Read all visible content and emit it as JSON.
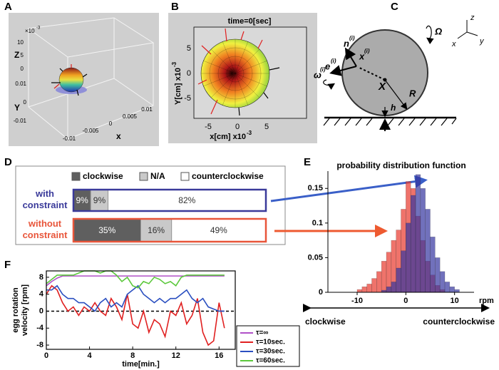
{
  "panel_labels": [
    "A",
    "B",
    "C",
    "D",
    "E",
    "F"
  ],
  "panel_a": {
    "scale": "×10",
    "scale_exp": "-3",
    "z_label": "Z",
    "y_label": "Y",
    "x_label": "x",
    "z_ticks": [
      "10",
      "5",
      "0"
    ],
    "y_ticks": [
      "0.01",
      "0",
      "-0.01"
    ],
    "x_ticks": [
      "-0.01",
      "-0.005",
      "0",
      "0.005",
      "0.01"
    ]
  },
  "panel_b": {
    "title": "time=0[sec]",
    "x_label": "x[cm] x10",
    "x_label_exp": "-3",
    "y_label": "Y[cm] x10",
    "y_label_exp": "-3",
    "x_ticks": [
      "-5",
      "0",
      "5"
    ],
    "y_ticks": [
      "5",
      "0",
      "-5"
    ]
  },
  "panel_c": {
    "axes": [
      "z",
      "x",
      "y"
    ],
    "omega_big": "Ω",
    "e": {
      "base": "e",
      "sup": "(i)"
    },
    "n": {
      "base": "n",
      "sup": "(i)"
    },
    "xi": {
      "base": "x",
      "sup": "(i)"
    },
    "omega": {
      "base": "ω",
      "sup": "(i)"
    },
    "x": "X",
    "R": "R",
    "h": "h"
  },
  "chart_data": [
    {
      "type": "bar",
      "orientation": "horizontal",
      "stacked": true,
      "categories": [
        "with constraint",
        "without constraint"
      ],
      "category_colors": [
        "#3a3a9a",
        "#e8553a"
      ],
      "series": [
        {
          "name": "clockwise",
          "color": "#5f5f5f",
          "values": [
            9,
            35
          ],
          "value_labels": [
            "9%",
            "35%"
          ]
        },
        {
          "name": "N/A",
          "color": "#c9c9c9",
          "values": [
            9,
            16
          ],
          "value_labels": [
            "9%",
            "16%"
          ]
        },
        {
          "name": "counterclockwise",
          "color": "#ffffff",
          "values": [
            82,
            49
          ],
          "value_labels": [
            "82%",
            "49%"
          ]
        }
      ],
      "xlim": [
        0,
        100
      ]
    },
    {
      "type": "histogram",
      "title": "probability distribution function",
      "x_label": "rpm",
      "bins": [
        -10,
        -9,
        -8,
        -7,
        -6,
        -5,
        -4,
        -3,
        -2,
        -1,
        0,
        1,
        2,
        3,
        4,
        5,
        6,
        7,
        8,
        9,
        10,
        11,
        12
      ],
      "series": [
        {
          "color": "#e8372c",
          "values": [
            0.004,
            0.008,
            0.012,
            0.02,
            0.03,
            0.045,
            0.058,
            0.075,
            0.09,
            0.12,
            0.16,
            0.15,
            0.11,
            0.075,
            0.045,
            0.025,
            0.01,
            0.004,
            0,
            0,
            0,
            0
          ]
        },
        {
          "color": "#3535a0",
          "values": [
            0,
            0,
            0,
            0,
            0,
            0.003,
            0.008,
            0.015,
            0.035,
            0.06,
            0.1,
            0.14,
            0.17,
            0.15,
            0.12,
            0.08,
            0.05,
            0.03,
            0.015,
            0.008,
            0.004,
            0
          ]
        }
      ],
      "xlim": [
        -16,
        14
      ],
      "ylim": [
        0,
        0.175
      ],
      "xticks": [
        -10,
        0,
        10
      ],
      "yticks": [
        0,
        0.05,
        0.1,
        0.15
      ],
      "annotations": [
        "clockwise",
        "counterclockwise"
      ]
    },
    {
      "type": "line",
      "x_label": "time[min.]",
      "y_label": [
        "egg rotation",
        "velocity  [rpm]"
      ],
      "x": [
        0,
        0.5,
        1,
        1.5,
        2,
        2.5,
        3,
        3.5,
        4,
        4.5,
        5,
        5.5,
        6,
        6.5,
        7,
        7.5,
        8,
        8.5,
        9,
        9.5,
        10,
        10.5,
        11,
        11.5,
        12,
        12.5,
        13,
        13.5,
        14,
        14.5,
        15,
        15.5,
        16,
        16.5
      ],
      "series": [
        {
          "name": "τ=∞",
          "color": "#b050c8",
          "values": [
            6,
            7,
            7.8,
            8.3,
            8.3,
            8.3,
            8.3,
            8.3,
            8.3,
            8.3,
            8.3,
            8.3,
            8.3,
            8.3,
            8.3,
            8.3,
            8.3,
            8.3,
            8.3,
            8.3,
            8.3,
            8.3,
            8.3,
            8.3,
            8.3,
            8.3,
            8.3,
            8.3,
            8.3,
            8.3,
            8.3,
            8.3,
            8.3,
            8.3
          ]
        },
        {
          "name": "τ=10sec.",
          "color": "#e02020",
          "values": [
            4,
            6,
            5,
            2,
            0,
            1,
            -1,
            1,
            0,
            2,
            0,
            -1,
            3,
            1,
            -2,
            4,
            -3,
            -4,
            0,
            -5,
            -2,
            -3,
            -6,
            0,
            -1,
            2,
            -3,
            -1,
            3,
            -5,
            -8,
            -7,
            2,
            -4
          ]
        },
        {
          "name": "τ=30sec.",
          "color": "#2a4fc0",
          "values": [
            5,
            5,
            6,
            4,
            3,
            3,
            2,
            2,
            1,
            0,
            2,
            3,
            1,
            2,
            1,
            4,
            5,
            6,
            4,
            3,
            2,
            3,
            2,
            3,
            3,
            4,
            5,
            3,
            2,
            3,
            1,
            0.5,
            0,
            0
          ]
        },
        {
          "name": "τ=60sec.",
          "color": "#5cc83c",
          "values": [
            6.5,
            7.5,
            8.5,
            8.5,
            8.5,
            8.5,
            9,
            9.5,
            9.5,
            9.5,
            9,
            9.5,
            9.5,
            8.5,
            7,
            8,
            6,
            5.5,
            7,
            6.5,
            8,
            7.5,
            6.5,
            7,
            6,
            8,
            8.5,
            8.5,
            8.5,
            8.5,
            8.5,
            8.5,
            8.5,
            8.5
          ]
        }
      ],
      "xlim": [
        0,
        17.5
      ],
      "ylim": [
        -9,
        9.5
      ],
      "xticks": [
        0,
        4,
        8,
        12,
        16
      ],
      "yticks": [
        -8,
        -4,
        0,
        4,
        8
      ],
      "reference_line": 0,
      "legend": "right"
    }
  ]
}
